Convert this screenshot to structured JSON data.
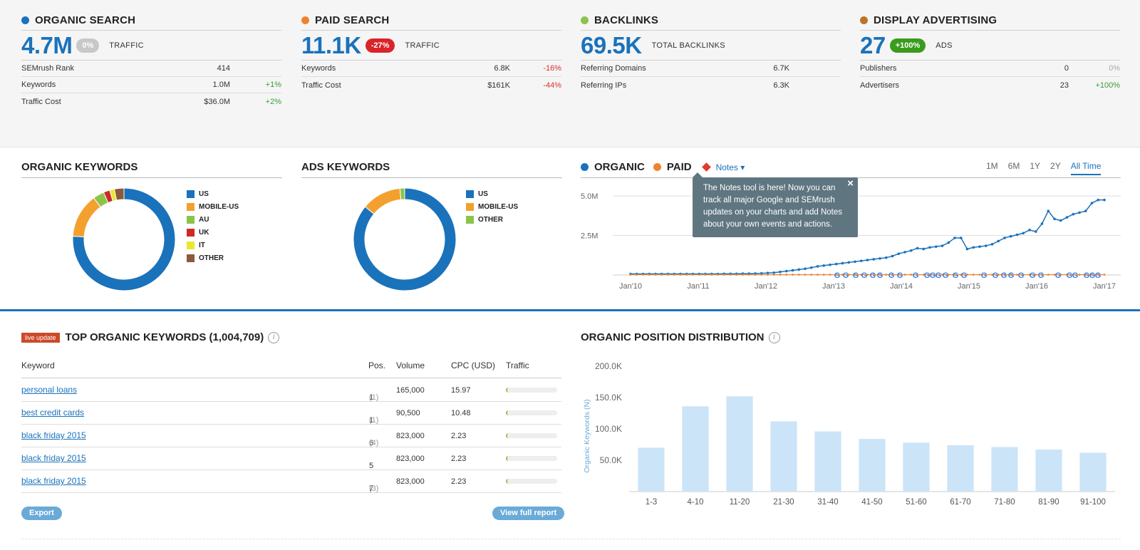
{
  "summary": [
    {
      "title": "ORGANIC SEARCH",
      "color": "#1a72bb",
      "value": "4.7M",
      "badge": "0%",
      "badge_color": "#c8c8c8",
      "label": "TRAFFIC",
      "rows": [
        {
          "k": "SEMrush Rank",
          "v": "414",
          "c": "",
          "t": ""
        },
        {
          "k": "Keywords",
          "v": "1.0M",
          "c": "+1%",
          "t": "pos"
        },
        {
          "k": "Traffic Cost",
          "v": "$36.0M",
          "c": "+2%",
          "t": "pos"
        }
      ]
    },
    {
      "title": "PAID SEARCH",
      "color": "#f0822e",
      "value": "11.1K",
      "badge": "-27%",
      "badge_color": "#d9242a",
      "label": "TRAFFIC",
      "rows": [
        {
          "k": "Keywords",
          "v": "6.8K",
          "c": "-16%",
          "t": "neg"
        },
        {
          "k": "Traffic Cost",
          "v": "$161K",
          "c": "-44%",
          "t": "neg"
        }
      ]
    },
    {
      "title": "BACKLINKS",
      "color": "#8dc34a",
      "value": "69.5K",
      "badge": "",
      "badge_color": "",
      "label": "TOTAL BACKLINKS",
      "rows": [
        {
          "k": "Referring Domains",
          "v": "6.7K",
          "c": "",
          "t": ""
        },
        {
          "k": "Referring IPs",
          "v": "6.3K",
          "c": "",
          "t": ""
        }
      ]
    },
    {
      "title": "DISPLAY ADVERTISING",
      "color": "#b87528",
      "value": "27",
      "badge": "+100%",
      "badge_color": "#3a9c1c",
      "label": "ADS",
      "rows": [
        {
          "k": "Publishers",
          "v": "0",
          "c": "0%",
          "t": "zero"
        },
        {
          "k": "Advertisers",
          "v": "23",
          "c": "+100%",
          "t": "pos"
        }
      ]
    }
  ],
  "organic_keywords": {
    "title": "ORGANIC KEYWORDS",
    "legend": [
      {
        "label": "US",
        "color": "#1a72bb"
      },
      {
        "label": "MOBILE-US",
        "color": "#f4a02e"
      },
      {
        "label": "AU",
        "color": "#8dc34a"
      },
      {
        "label": "UK",
        "color": "#cc2a2a"
      },
      {
        "label": "IT",
        "color": "#e8e830"
      },
      {
        "label": "OTHER",
        "color": "#8b5a3a"
      }
    ],
    "shares": [
      0.76,
      0.14,
      0.035,
      0.02,
      0.015,
      0.03
    ]
  },
  "ads_keywords": {
    "title": "ADS KEYWORDS",
    "legend": [
      {
        "label": "US",
        "color": "#1a72bb"
      },
      {
        "label": "MOBILE-US",
        "color": "#f4a02e"
      },
      {
        "label": "OTHER",
        "color": "#8dc34a"
      }
    ],
    "shares": [
      0.86,
      0.125,
      0.015
    ]
  },
  "trend": {
    "organic_label": "ORGANIC",
    "paid_label": "PAID",
    "notes_label": "Notes ▾",
    "tabs": [
      "1M",
      "6M",
      "1Y",
      "2Y",
      "All Time"
    ],
    "active_tab": "All Time",
    "tooltip": "The Notes tool is here! Now you can track all major Google and SEMrush updates on your charts and add Notes about your own events and actions.",
    "tooltip_close": "×",
    "y_ticks": [
      "5.0M",
      "2.5M"
    ],
    "x_ticks": [
      "Jan'10",
      "Jan'11",
      "Jan'12",
      "Jan'13",
      "Jan'14",
      "Jan'15",
      "Jan'16",
      "Jan'17"
    ]
  },
  "chart_data": {
    "type": "line",
    "x_start": "Jan'10",
    "x_end": "Jan'17",
    "ylim": [
      0,
      5.0
    ],
    "series": [
      {
        "name": "ORGANIC",
        "color": "#1a72bb",
        "values": [
          0.02,
          0.02,
          0.02,
          0.02,
          0.02,
          0.02,
          0.02,
          0.02,
          0.02,
          0.02,
          0.02,
          0.02,
          0.02,
          0.02,
          0.02,
          0.03,
          0.03,
          0.03,
          0.04,
          0.04,
          0.05,
          0.06,
          0.08,
          0.1,
          0.15,
          0.2,
          0.25,
          0.3,
          0.35,
          0.42,
          0.5,
          0.55,
          0.6,
          0.65,
          0.7,
          0.75,
          0.8,
          0.85,
          0.9,
          0.95,
          1.0,
          1.05,
          1.15,
          1.3,
          1.4,
          1.5,
          1.65,
          1.6,
          1.7,
          1.75,
          1.8,
          2.0,
          2.3,
          2.3,
          1.6,
          1.7,
          1.75,
          1.8,
          1.9,
          2.1,
          2.3,
          2.4,
          2.5,
          2.6,
          2.8,
          2.7,
          3.2,
          4.0,
          3.5,
          3.4,
          3.6,
          3.8,
          3.9,
          4.0,
          4.5,
          4.7,
          4.7
        ]
      },
      {
        "name": "PAID",
        "color": "#f0822e",
        "values": [
          0.02,
          0.02,
          0.02,
          0.02,
          0.02,
          0.02,
          0.02,
          0.02,
          0.02,
          0.02,
          0.02,
          0.02,
          0.02,
          0.02,
          0.02,
          0.02,
          0.02,
          0.02,
          0.02,
          0.02,
          0.02,
          0.02,
          0.02,
          0.02,
          0.02,
          0.02,
          0.02,
          0.02,
          0.02,
          0.02,
          0.02,
          0.02,
          0.02,
          0.02,
          0.02,
          0.02,
          0.02,
          0.02,
          0.02,
          0.02,
          0.02,
          0.02,
          0.02,
          0.02,
          0.02,
          0.02,
          0.02,
          0.02,
          0.02,
          0.02,
          0.02,
          0.02,
          0.02,
          0.02,
          0.02,
          0.02,
          0.02,
          0.02,
          0.02,
          0.02,
          0.02,
          0.02,
          0.02,
          0.02,
          0.02,
          0.02,
          0.02,
          0.02,
          0.02,
          0.02,
          0.02,
          0.02,
          0.02,
          0.02,
          0.02,
          0.02,
          0.02
        ]
      }
    ]
  },
  "top_keywords": {
    "live": "live update",
    "title": "TOP ORGANIC KEYWORDS (1,004,709)",
    "info": "i",
    "headers": {
      "keyword": "Keyword",
      "pos": "Pos.",
      "volume": "Volume",
      "cpc": "CPC (USD)",
      "traffic": "Traffic"
    },
    "rows": [
      {
        "keyword": "personal loans",
        "pos": "1",
        "prev": "(1)",
        "volume": "165,000",
        "cpc": "15.97"
      },
      {
        "keyword": "best credit cards",
        "pos": "1",
        "prev": "(1)",
        "volume": "90,500",
        "cpc": "10.48"
      },
      {
        "keyword": "black friday 2015",
        "pos": "6",
        "prev": "(4)",
        "volume": "823,000",
        "cpc": "2.23"
      },
      {
        "keyword": "black friday 2015",
        "pos": "5",
        "prev": "",
        "volume": "823,000",
        "cpc": "2.23"
      },
      {
        "keyword": "black friday 2015",
        "pos": "7",
        "prev": "(3)",
        "volume": "823,000",
        "cpc": "2.23"
      }
    ],
    "export": "Export",
    "view_full": "View full report"
  },
  "distribution": {
    "title": "ORGANIC POSITION DISTRIBUTION",
    "info": "i",
    "ylabel": "Organic Keywords (N)",
    "y_ticks": [
      "200.0K",
      "150.0K",
      "100.0K",
      "50.0K"
    ],
    "categories": [
      "1-3",
      "4-10",
      "11-20",
      "21-30",
      "31-40",
      "41-50",
      "51-60",
      "61-70",
      "71-80",
      "81-90",
      "91-100"
    ],
    "values": [
      70000,
      136000,
      152000,
      112000,
      96000,
      84000,
      78000,
      74000,
      71000,
      67000,
      62000
    ],
    "ylim": [
      0,
      200000
    ]
  }
}
